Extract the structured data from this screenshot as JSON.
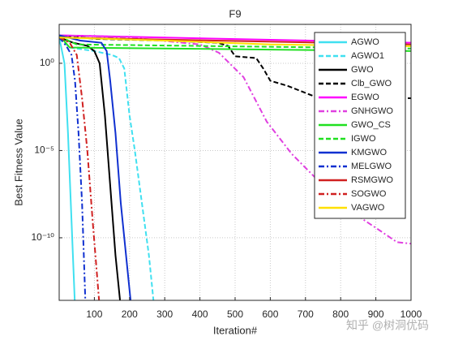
{
  "chart_data": {
    "type": "line",
    "title": "F9",
    "xlabel": "Iteration#",
    "ylabel": "Best Fitness Value",
    "watermark": "知乎 @树洞优码",
    "xlim": [
      0,
      1000
    ],
    "xticks": [
      100,
      200,
      300,
      400,
      500,
      600,
      700,
      800,
      900,
      1000
    ],
    "ylim": [
      2.6e-14,
      170
    ],
    "yscale": "log",
    "yticks": [
      {
        "value": 1e-10,
        "label": "10⁻¹⁰"
      },
      {
        "value": 1e-05,
        "label": "10⁻⁵"
      },
      {
        "value": 1,
        "label": "10⁰"
      }
    ],
    "grid": true,
    "legend": "upper right",
    "series": [
      {
        "name": "AGWO",
        "color": "#40e0f0",
        "dash": "solid",
        "x": [
          0,
          5,
          15,
          25,
          35,
          45
        ],
        "values": [
          30,
          10,
          1,
          0.0001,
          1e-09,
          1e-14
        ]
      },
      {
        "name": "AGWO1",
        "color": "#40e0f0",
        "dash": "dashed",
        "x": [
          0,
          30,
          100,
          150,
          170,
          185,
          200,
          215,
          235,
          255,
          270
        ],
        "values": [
          30,
          8,
          5,
          3,
          2,
          0.5,
          0.001,
          1e-05,
          1e-08,
          1e-11,
          1e-14
        ]
      },
      {
        "name": "GWO",
        "color": "#000000",
        "dash": "solid",
        "x": [
          0,
          40,
          80,
          100,
          115,
          130,
          145,
          160,
          175
        ],
        "values": [
          30,
          15,
          10,
          5,
          1,
          0.001,
          1e-07,
          1e-11,
          1e-14
        ]
      },
      {
        "name": "Clb_GWO",
        "color": "#000000",
        "dash": "dashed",
        "x": [
          0,
          100,
          300,
          450,
          480,
          500,
          560,
          580,
          600,
          650,
          700,
          750,
          800,
          950,
          970,
          1000
        ],
        "values": [
          40,
          25,
          20,
          15,
          10,
          2.5,
          2,
          0.5,
          0.1,
          0.05,
          0.02,
          0.008,
          0.006,
          0.006,
          0.01,
          0.01
        ]
      },
      {
        "name": "EGWO",
        "color": "#ff00ff",
        "dash": "solid",
        "x": [
          0,
          1000
        ],
        "values": [
          40,
          15
        ]
      },
      {
        "name": "GNHGWO",
        "color": "#e040e0",
        "dash": "dashdot",
        "x": [
          0,
          200,
          400,
          454,
          524,
          590,
          661,
          753,
          845,
          914,
          960,
          1000
        ],
        "values": [
          40,
          30,
          12,
          4,
          0.16,
          0.00045,
          6.4e-06,
          8.6e-08,
          2e-09,
          2.4e-10,
          5.6e-11,
          4.6e-11
        ]
      },
      {
        "name": "GWO_CS",
        "color": "#20e020",
        "dash": "solid",
        "x": [
          0,
          30,
          1000
        ],
        "values": [
          40,
          8,
          5
        ]
      },
      {
        "name": "IGWO",
        "color": "#20e020",
        "dash": "dashed",
        "x": [
          0,
          50,
          1000
        ],
        "values": [
          35,
          12,
          7
        ]
      },
      {
        "name": "KMGWO",
        "color": "#1030d0",
        "dash": "solid",
        "x": [
          0,
          60,
          120,
          135,
          145,
          160,
          175,
          190,
          205
        ],
        "values": [
          40,
          20,
          15,
          5,
          0.1,
          0.0001,
          1e-08,
          1e-11,
          1e-14
        ]
      },
      {
        "name": "MELGWO",
        "color": "#1030d0",
        "dash": "dashdot",
        "x": [
          0,
          20,
          35,
          45,
          55,
          65,
          75
        ],
        "values": [
          30,
          10,
          3,
          0.1,
          0.0001,
          1e-08,
          1e-14
        ]
      },
      {
        "name": "RSMGWO",
        "color": "#d02020",
        "dash": "solid",
        "x": [
          0,
          1000
        ],
        "values": [
          30,
          12
        ]
      },
      {
        "name": "SOGWO",
        "color": "#d02020",
        "dash": "dashdot",
        "x": [
          0,
          30,
          50,
          65,
          80,
          95,
          115
        ],
        "values": [
          30,
          15,
          3,
          0.01,
          1e-05,
          1e-09,
          1e-14
        ]
      },
      {
        "name": "VAGWO",
        "color": "#ffe000",
        "dash": "solid",
        "x": [
          0,
          300,
          600,
          1000
        ],
        "values": [
          30,
          20,
          12,
          9.5
        ]
      }
    ]
  }
}
